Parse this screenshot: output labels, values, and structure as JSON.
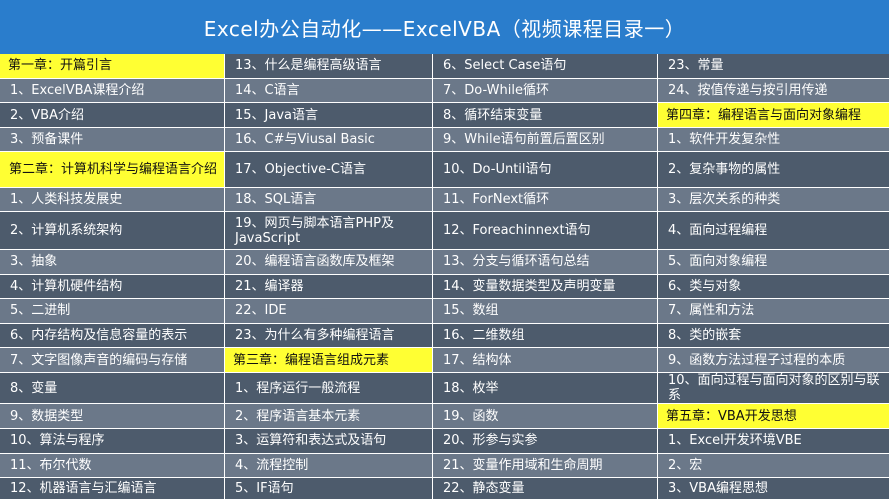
{
  "title": "Excel办公自动化——ExcelVBA（视频课程目录一）",
  "columns": [
    {
      "cells": [
        {
          "text": "第一章：开篇引言",
          "header": true
        },
        {
          "text": "1、ExcelVBA课程介绍"
        },
        {
          "text": "2、VBA介绍"
        },
        {
          "text": "3、预备课件"
        },
        {
          "text": "第二章：计算机科学与编程语言介绍",
          "header": true
        },
        {
          "text": "1、人类科技发展史"
        },
        {
          "text": "2、计算机系统架构"
        },
        {
          "text": "3、抽象"
        },
        {
          "text": "4、计算机硬件结构"
        },
        {
          "text": "5、二进制"
        },
        {
          "text": "6、内存结构及信息容量的表示"
        },
        {
          "text": "7、文字图像声音的编码与存储"
        },
        {
          "text": "8、变量"
        },
        {
          "text": "9、数据类型"
        },
        {
          "text": "10、算法与程序"
        },
        {
          "text": "11、布尔代数"
        },
        {
          "text": "12、机器语言与汇编语言"
        }
      ]
    },
    {
      "cells": [
        {
          "text": "13、什么是编程高级语言"
        },
        {
          "text": "14、C语言"
        },
        {
          "text": "15、Java语言"
        },
        {
          "text": "16、C#与Viusal Basic"
        },
        {
          "text": "17、Objective-C语言"
        },
        {
          "text": "18、SQL语言"
        },
        {
          "text": "19、网页与脚本语言PHP及JavaScript"
        },
        {
          "text": "20、编程语言函数库及框架"
        },
        {
          "text": "21、编译器"
        },
        {
          "text": "22、IDE"
        },
        {
          "text": "23、为什么有多种编程语言"
        },
        {
          "text": "第三章：编程语言组成元素",
          "header": true
        },
        {
          "text": "1、程序运行一般流程"
        },
        {
          "text": "2、程序语言基本元素"
        },
        {
          "text": "3、运算符和表达式及语句"
        },
        {
          "text": "4、流程控制"
        },
        {
          "text": "5、IF语句"
        }
      ]
    },
    {
      "cells": [
        {
          "text": "6、Select Case语句"
        },
        {
          "text": "7、Do-While循环"
        },
        {
          "text": "8、循环结束变量"
        },
        {
          "text": "9、While语句前置后置区别"
        },
        {
          "text": "10、Do-Until语句"
        },
        {
          "text": "11、ForNext循环"
        },
        {
          "text": "12、Foreachinnext语句"
        },
        {
          "text": "13、分支与循环语句总结"
        },
        {
          "text": "14、变量数据类型及声明变量"
        },
        {
          "text": "15、数组"
        },
        {
          "text": "16、二维数组"
        },
        {
          "text": "17、结构体"
        },
        {
          "text": "18、枚举"
        },
        {
          "text": "19、函数"
        },
        {
          "text": "20、形参与实参"
        },
        {
          "text": "21、变量作用域和生命周期"
        },
        {
          "text": "22、静态变量"
        }
      ]
    },
    {
      "cells": [
        {
          "text": "23、常量"
        },
        {
          "text": "24、按值传递与按引用传递"
        },
        {
          "text": "第四章：编程语言与面向对象编程",
          "header": true
        },
        {
          "text": "1、软件开发复杂性"
        },
        {
          "text": "2、复杂事物的属性"
        },
        {
          "text": "3、层次关系的种类"
        },
        {
          "text": "4、面向过程编程"
        },
        {
          "text": "5、面向对象编程"
        },
        {
          "text": "6、类与对象"
        },
        {
          "text": "7、属性和方法"
        },
        {
          "text": "8、类的嵌套"
        },
        {
          "text": "9、函数方法过程子过程的本质"
        },
        {
          "text": "10、面向过程与面向对象的区别与联系"
        },
        {
          "text": "第五章：VBA开发思想",
          "header": true
        },
        {
          "text": "1、Excel开发环境VBE"
        },
        {
          "text": "2、宏"
        },
        {
          "text": "3、VBA编程思想"
        }
      ]
    }
  ]
}
